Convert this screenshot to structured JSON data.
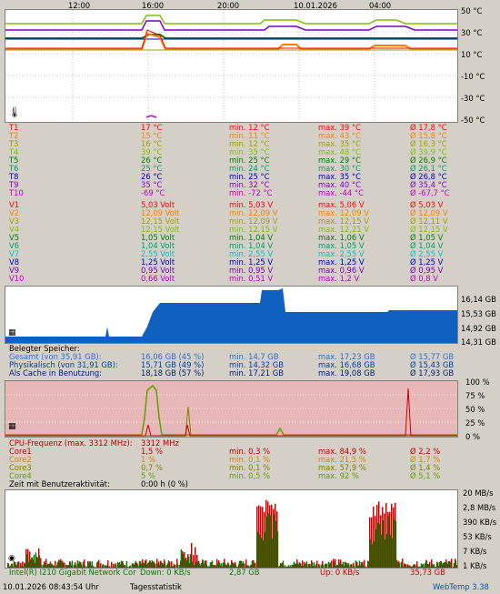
{
  "time_axis": {
    "ticks": [
      "12:00",
      "16:00",
      "20:00",
      "10.01.2026",
      "04:00"
    ]
  },
  "temp_axis": {
    "ticks": [
      "50 °C",
      "30 °C",
      "10 °C",
      "-10 °C",
      "-30 °C",
      "-50 °C"
    ]
  },
  "temp_rows": [
    {
      "name": "T1",
      "cur": "17 °C",
      "min": "min. 12 °C",
      "max": "max. 39 °C",
      "avg": "Ø 17,8 °C",
      "color": "#ff0000"
    },
    {
      "name": "T2",
      "cur": "15 °C",
      "min": "min. 11 °C",
      "max": "max. 43 °C",
      "avg": "Ø 15,8 °C",
      "color": "#ff8000"
    },
    {
      "name": "T3",
      "cur": "16 °C",
      "min": "min. 12 °C",
      "max": "max. 35 °C",
      "avg": "Ø 16,3 °C",
      "color": "#a0a000"
    },
    {
      "name": "T4",
      "cur": "39 °C",
      "min": "min. 35 °C",
      "max": "max. 48 °C",
      "avg": "Ø 39,9 °C",
      "color": "#80c000"
    },
    {
      "name": "T5",
      "cur": "26 °C",
      "min": "min. 25 °C",
      "max": "max. 29 °C",
      "avg": "Ø 26,9 °C",
      "color": "#008000"
    },
    {
      "name": "T6",
      "cur": "25 °C",
      "min": "min. 24 °C",
      "max": "max. 30 °C",
      "avg": "Ø 26,1 °C",
      "color": "#00a060"
    },
    {
      "name": "T8",
      "cur": "26 °C",
      "min": "min. 25 °C",
      "max": "max. 35 °C",
      "avg": "Ø 26,8 °C",
      "color": "#0000c0"
    },
    {
      "name": "T9",
      "cur": "35 °C",
      "min": "min. 32 °C",
      "max": "max. 40 °C",
      "avg": "Ø 35,4 °C",
      "color": "#8000c0"
    },
    {
      "name": "T10",
      "cur": "-69 °C",
      "min": "min. -72 °C",
      "max": "max. -44 °C",
      "avg": "Ø -67,7 °C",
      "color": "#c000c0"
    }
  ],
  "volt_rows": [
    {
      "name": "V1",
      "cur": "5,03 Volt",
      "min": "min. 5,03 V",
      "max": "max. 5,06 V",
      "avg": "Ø 5,03 V",
      "color": "#ff0000"
    },
    {
      "name": "V2",
      "cur": "12,09 Volt",
      "min": "min. 12,09 V",
      "max": "max. 12,09 V",
      "avg": "Ø 12,09 V",
      "color": "#ff8000"
    },
    {
      "name": "V3",
      "cur": "12,15 Volt",
      "min": "min. 12,09 V",
      "max": "max. 12,15 V",
      "avg": "Ø 12,11 V",
      "color": "#a0a000"
    },
    {
      "name": "V4",
      "cur": "12,15 Volt",
      "min": "min. 12,15 V",
      "max": "max. 12,21 V",
      "avg": "Ø 12,15 V",
      "color": "#80c000"
    },
    {
      "name": "V5",
      "cur": "1,05 Volt",
      "min": "min. 1,04 V",
      "max": "max. 1,06 V",
      "avg": "Ø 1,05 V",
      "color": "#008000"
    },
    {
      "name": "V6",
      "cur": "1,04 Volt",
      "min": "min. 1,04 V",
      "max": "max. 1,05 V",
      "avg": "Ø 1,04 V",
      "color": "#00a060"
    },
    {
      "name": "V7",
      "cur": "2,55 Volt",
      "min": "min. 2,55 V",
      "max": "max. 2,55 V",
      "avg": "Ø 2,55 V",
      "color": "#00c0c0"
    },
    {
      "name": "V8",
      "cur": "1,25 Volt",
      "min": "min. 1,25 V",
      "max": "max. 1,25 V",
      "avg": "Ø 1,25 V",
      "color": "#0000c0"
    },
    {
      "name": "V9",
      "cur": "0,95 Volt",
      "min": "min. 0,95 V",
      "max": "max. 0,96 V",
      "avg": "Ø 0,95 V",
      "color": "#8000c0"
    },
    {
      "name": "V10",
      "cur": "0,66 Volt",
      "min": "min. 0,51 V",
      "max": "max. 1,2 V",
      "avg": "Ø 0,8 V",
      "color": "#c000c0"
    }
  ],
  "mem_axis": {
    "ticks": [
      "16,14 GB",
      "15,53 GB",
      "14,92 GB",
      "14,31 GB"
    ]
  },
  "mem_section": {
    "title": "Belegter Speicher:",
    "rows": [
      {
        "name": "Gesamt (von 35,91 GB):",
        "cur": "16,06 GB (45 %)",
        "min": "min. 14,7 GB",
        "max": "max. 17,23 GB",
        "avg": "Ø 15,77 GB",
        "color": "#3070d0"
      },
      {
        "name": "Physikalisch (von 31,91 GB):",
        "cur": "15,71 GB (49 %)",
        "min": "min. 14,32 GB",
        "max": "max. 16,68 GB",
        "avg": "Ø 15,43 GB",
        "color": "#0040a0"
      },
      {
        "name": "Als Cache in Benutzung:",
        "cur": "18,18 GB (57 %)",
        "min": "min. 17,21 GB",
        "max": "max. 19,08 GB",
        "avg": "Ø 17,93 GB",
        "color": "#002070"
      }
    ]
  },
  "cpu_axis": {
    "ticks": [
      "100 %",
      "75 %",
      "50 %",
      "25 %",
      "0 %"
    ]
  },
  "cpu_section": {
    "freq_label": "CPU-Frequenz (max. 3312 MHz):",
    "freq_value": "3312 MHz",
    "rows": [
      {
        "name": "Core1",
        "cur": "1,5 %",
        "min": "min. 0,3 %",
        "max": "max. 84,9 %",
        "avg": "Ø 2,2 %",
        "color": "#c00000"
      },
      {
        "name": "Core2",
        "cur": "1 %",
        "min": "min. 0,1 %",
        "max": "max. 21,5 %",
        "avg": "Ø 1,7 %",
        "color": "#e08000"
      },
      {
        "name": "Core3",
        "cur": "0,7 %",
        "min": "min. 0,1 %",
        "max": "max. 57,9 %",
        "avg": "Ø 1,4 %",
        "color": "#808000"
      },
      {
        "name": "Core4",
        "cur": "5 %",
        "min": "min. 0,5 %",
        "max": "max. 92 %",
        "avg": "Ø 5,1 %",
        "color": "#60a000"
      }
    ],
    "activity_label": "Zeit mit Benutzeraktivität:",
    "activity_value": "0:00 h (0 %)"
  },
  "net_axis": {
    "ticks": [
      "20 MB/s",
      "2,8 MB/s",
      "390 KB/s",
      "53 KB/s",
      "7 KB/s",
      "1 KB/s"
    ]
  },
  "net_section": {
    "adapter": "Intel(R) I210 Gigabit Network Cor",
    "down_label": "Down: 0 KB/s",
    "down_total": "2,87 GB",
    "up_label": "Up: 0 KB/s",
    "up_total": "35,73 GB"
  },
  "status": {
    "datetime": "10.01.2026 08:43:54 Uhr",
    "mode": "Tagesstatistik",
    "version": "WebTemp 3.38"
  },
  "colors": {
    "plot_bg": "#ffffff",
    "cpu_bg": "#e8b8b8",
    "mem_fill": "#1060c0",
    "net_down": "#008000",
    "net_up": "#d00000"
  }
}
